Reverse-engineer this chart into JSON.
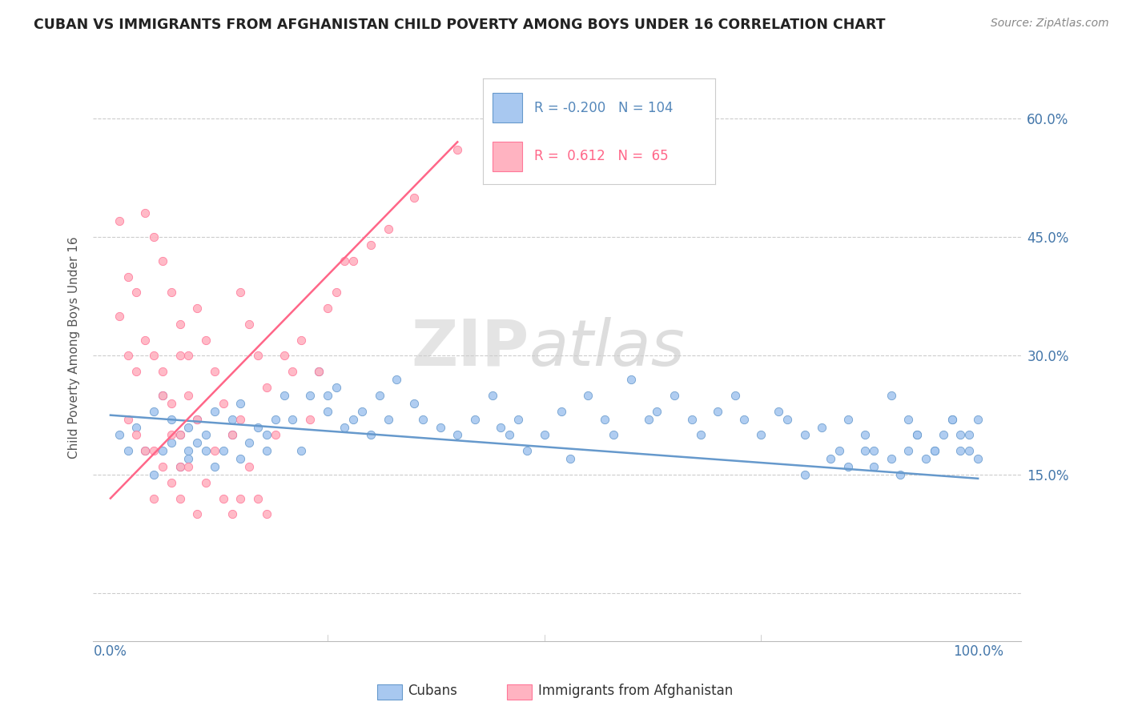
{
  "title": "CUBAN VS IMMIGRANTS FROM AFGHANISTAN CHILD POVERTY AMONG BOYS UNDER 16 CORRELATION CHART",
  "source": "Source: ZipAtlas.com",
  "ylabel": "Child Poverty Among Boys Under 16",
  "xlim": [
    -2,
    105
  ],
  "ylim": [
    -6,
    68
  ],
  "watermark_zip": "ZIP",
  "watermark_atlas": "atlas",
  "series1_color": "#a8c8f0",
  "series1_edge": "#6699cc",
  "series2_color": "#ffb3c1",
  "series2_edge": "#ff7799",
  "line1_color": "#6699cc",
  "line2_color": "#ff6688",
  "legend_r1": "-0.200",
  "legend_n1": "104",
  "legend_r2": "0.612",
  "legend_n2": "65",
  "legend_label1": "Cubans",
  "legend_label2": "Immigrants from Afghanistan",
  "legend_color1": "#5588bb",
  "legend_color2": "#ff6688",
  "cubans_x": [
    1,
    2,
    3,
    4,
    5,
    5,
    6,
    6,
    7,
    7,
    8,
    8,
    9,
    9,
    9,
    10,
    10,
    11,
    11,
    12,
    12,
    13,
    14,
    14,
    15,
    15,
    16,
    17,
    18,
    18,
    19,
    20,
    21,
    22,
    23,
    24,
    25,
    25,
    26,
    27,
    28,
    29,
    30,
    31,
    32,
    33,
    35,
    36,
    38,
    40,
    42,
    44,
    45,
    46,
    47,
    48,
    50,
    52,
    53,
    55,
    57,
    58,
    60,
    62,
    63,
    65,
    67,
    68,
    70,
    72,
    73,
    75,
    77,
    78,
    80,
    82,
    84,
    85,
    87,
    88,
    90,
    92,
    93,
    95,
    97,
    98,
    99,
    100,
    100,
    99,
    98,
    97,
    96,
    95,
    94,
    93,
    92,
    91,
    90,
    88,
    87,
    85,
    83,
    80
  ],
  "cubans_y": [
    20,
    18,
    21,
    18,
    15,
    23,
    18,
    25,
    19,
    22,
    16,
    20,
    18,
    17,
    21,
    22,
    19,
    20,
    18,
    16,
    23,
    18,
    20,
    22,
    17,
    24,
    19,
    21,
    18,
    20,
    22,
    25,
    22,
    18,
    25,
    28,
    23,
    25,
    26,
    21,
    22,
    23,
    20,
    25,
    22,
    27,
    24,
    22,
    21,
    20,
    22,
    25,
    21,
    20,
    22,
    18,
    20,
    23,
    17,
    25,
    22,
    20,
    27,
    22,
    23,
    25,
    22,
    20,
    23,
    25,
    22,
    20,
    23,
    22,
    20,
    21,
    18,
    22,
    20,
    18,
    25,
    22,
    20,
    18,
    22,
    20,
    18,
    17,
    22,
    20,
    18,
    22,
    20,
    18,
    17,
    20,
    18,
    15,
    17,
    16,
    18,
    16,
    17,
    15
  ],
  "afghan_x": [
    1,
    1,
    2,
    2,
    2,
    3,
    3,
    3,
    4,
    4,
    4,
    5,
    5,
    5,
    5,
    6,
    6,
    6,
    7,
    7,
    7,
    8,
    8,
    8,
    9,
    9,
    10,
    10,
    10,
    11,
    11,
    12,
    12,
    13,
    13,
    14,
    14,
    15,
    15,
    15,
    16,
    16,
    17,
    17,
    18,
    18,
    19,
    20,
    21,
    22,
    23,
    24,
    25,
    26,
    27,
    28,
    30,
    32,
    35,
    40,
    6,
    7,
    8,
    8,
    9
  ],
  "afghan_y": [
    47,
    35,
    40,
    30,
    22,
    38,
    28,
    20,
    48,
    32,
    18,
    45,
    30,
    18,
    12,
    42,
    28,
    16,
    38,
    24,
    14,
    34,
    20,
    12,
    30,
    16,
    36,
    22,
    10,
    32,
    14,
    28,
    18,
    24,
    12,
    20,
    10,
    38,
    22,
    12,
    34,
    16,
    30,
    12,
    26,
    10,
    20,
    30,
    28,
    32,
    22,
    28,
    36,
    38,
    42,
    42,
    44,
    46,
    50,
    56,
    25,
    20,
    16,
    30,
    25
  ],
  "trendline1_x": [
    0,
    100
  ],
  "trendline1_y": [
    22.5,
    14.5
  ],
  "trendline2_x": [
    0,
    40
  ],
  "trendline2_y": [
    12,
    57
  ],
  "ytick_positions": [
    0,
    15,
    30,
    45,
    60
  ],
  "xtick_positions": [
    0,
    25,
    50,
    75,
    100
  ]
}
